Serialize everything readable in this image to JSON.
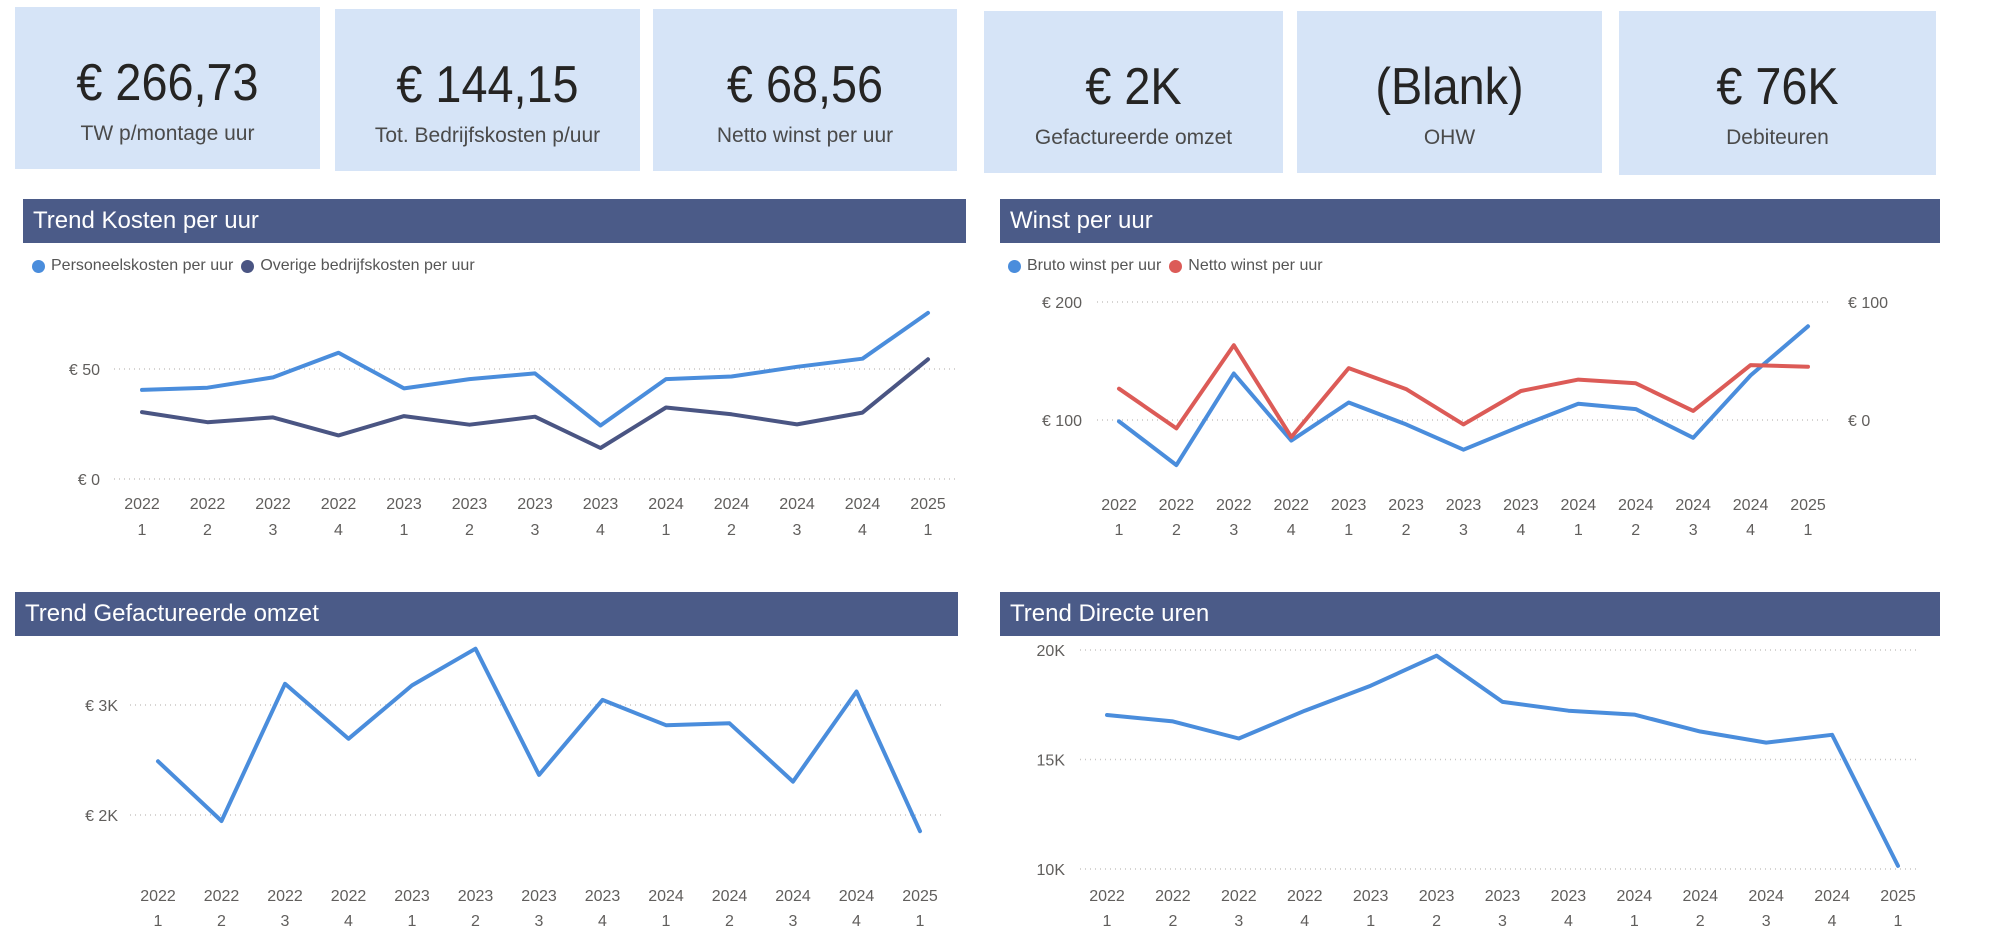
{
  "kpis": [
    {
      "value": "€ 266,73",
      "label": "TW p/montage uur"
    },
    {
      "value": "€ 144,15",
      "label": "Tot. Bedrijfskosten p/uur"
    },
    {
      "value": "€ 68,56",
      "label": "Netto winst per uur"
    },
    {
      "value": "€ 2K",
      "label": "Gefactureerde omzet"
    },
    {
      "value": "(Blank)",
      "label": "OHW"
    },
    {
      "value": "€ 76K",
      "label": "Debiteuren"
    }
  ],
  "colors": {
    "header": "#4b5b88",
    "card": "#d6e4f7",
    "blue": "#4a8ddc",
    "navy": "#4a5583",
    "red": "#dc5b57"
  },
  "chart_data": [
    {
      "id": "kosten",
      "type": "line",
      "title": "Trend Kosten per uur",
      "categories": [
        "2022 1",
        "2022 2",
        "2022 3",
        "2022 4",
        "2023 1",
        "2023 2",
        "2023 3",
        "2023 4",
        "2024 1",
        "2024 2",
        "2024 3",
        "2024 4",
        "2025 1"
      ],
      "x_years": [
        "2022",
        "2022",
        "2022",
        "2022",
        "2023",
        "2023",
        "2023",
        "2023",
        "2024",
        "2024",
        "2024",
        "2024",
        "2025"
      ],
      "x_quarters": [
        "1",
        "2",
        "3",
        "4",
        "1",
        "2",
        "3",
        "4",
        "1",
        "2",
        "3",
        "4",
        "1"
      ],
      "y_ticks": [
        {
          "value": 0,
          "label": "€ 0"
        },
        {
          "value": 50,
          "label": "€ 50"
        }
      ],
      "ylim": [
        0,
        86
      ],
      "legend_position": "top-left",
      "series": [
        {
          "name": "Personeelskosten per uur",
          "color": "#4a8ddc",
          "values": [
            40.5,
            41.5,
            46.2,
            57.4,
            41.2,
            45.4,
            48.0,
            24.3,
            45.4,
            46.6,
            51.0,
            54.7,
            75.5
          ]
        },
        {
          "name": "Overige bedrijfskosten per uur",
          "color": "#4a5583",
          "values": [
            30.4,
            25.8,
            28.0,
            19.8,
            28.6,
            24.7,
            28.3,
            14.1,
            32.5,
            29.4,
            24.8,
            30.2,
            54.4
          ]
        }
      ]
    },
    {
      "id": "winst",
      "type": "line",
      "title": "Winst per uur",
      "categories": [
        "2022 1",
        "2022 2",
        "2022 3",
        "2022 4",
        "2023 1",
        "2023 2",
        "2023 3",
        "2023 4",
        "2024 1",
        "2024 2",
        "2024 3",
        "2024 4",
        "2025 1"
      ],
      "x_years": [
        "2022",
        "2022",
        "2022",
        "2022",
        "2023",
        "2023",
        "2023",
        "2023",
        "2024",
        "2024",
        "2024",
        "2024",
        "2025"
      ],
      "x_quarters": [
        "1",
        "2",
        "3",
        "4",
        "1",
        "2",
        "3",
        "4",
        "1",
        "2",
        "3",
        "4",
        "1"
      ],
      "y_ticks": [
        {
          "value": 100,
          "label": "€ 100"
        },
        {
          "value": 200,
          "label": "€ 200"
        }
      ],
      "y2_ticks": [
        {
          "value": 0,
          "label": "€ 0"
        },
        {
          "value": 100,
          "label": "€ 100"
        }
      ],
      "legend_position": "top-left",
      "series": [
        {
          "name": "Bruto winst per uur",
          "color": "#4a8ddc",
          "axis": "left",
          "values": [
            98.8,
            61.8,
            139.4,
            82.5,
            114.8,
            96.3,
            74.8,
            94.8,
            113.8,
            109.2,
            84.9,
            137.8,
            179.4
          ]
        },
        {
          "name": "Netto winst per uur",
          "color": "#dc5b57",
          "axis": "right",
          "values": [
            26.5,
            -7.1,
            63.4,
            -14.5,
            44.0,
            26.2,
            -3.7,
            24.6,
            34.2,
            31.1,
            7.7,
            46.5,
            45.2
          ]
        }
      ]
    },
    {
      "id": "omzet",
      "type": "line",
      "title": "Trend Gefactureerde omzet",
      "categories": [
        "2022 1",
        "2022 2",
        "2022 3",
        "2022 4",
        "2023 1",
        "2023 2",
        "2023 3",
        "2023 4",
        "2024 1",
        "2024 2",
        "2024 3",
        "2024 4",
        "2025 1"
      ],
      "x_years": [
        "2022",
        "2022",
        "2022",
        "2022",
        "2023",
        "2023",
        "2023",
        "2023",
        "2024",
        "2024",
        "2024",
        "2024",
        "2025"
      ],
      "x_quarters": [
        "1",
        "2",
        "3",
        "4",
        "1",
        "2",
        "3",
        "4",
        "1",
        "2",
        "3",
        "4",
        "1"
      ],
      "y_ticks": [
        {
          "value": 2000,
          "label": "€ 2K"
        },
        {
          "value": 3000,
          "label": "€ 3K"
        }
      ],
      "series": [
        {
          "name": "Gefactureerde omzet",
          "color": "#4a8ddc",
          "values": [
            2488,
            1945,
            3193,
            2693,
            3178,
            3512,
            2365,
            3046,
            2816,
            2834,
            2304,
            3123,
            1853
          ]
        }
      ]
    },
    {
      "id": "uren",
      "type": "line",
      "title": "Trend Directe uren",
      "categories": [
        "2022 1",
        "2022 2",
        "2022 3",
        "2022 4",
        "2023 1",
        "2023 2",
        "2023 3",
        "2023 4",
        "2024 1",
        "2024 2",
        "2024 3",
        "2024 4",
        "2025 1"
      ],
      "x_years": [
        "2022",
        "2022",
        "2022",
        "2022",
        "2023",
        "2023",
        "2023",
        "2023",
        "2024",
        "2024",
        "2024",
        "2024",
        "2025"
      ],
      "x_quarters": [
        "1",
        "2",
        "3",
        "4",
        "1",
        "2",
        "3",
        "4",
        "1",
        "2",
        "3",
        "4",
        "1"
      ],
      "y_ticks": [
        {
          "value": 10000,
          "label": "10K"
        },
        {
          "value": 15000,
          "label": "15K"
        },
        {
          "value": 20000,
          "label": "20K"
        }
      ],
      "series": [
        {
          "name": "Directe uren",
          "color": "#4a8ddc",
          "values": [
            17030,
            16740,
            15960,
            17230,
            18370,
            19740,
            17630,
            17230,
            17050,
            16280,
            15770,
            16130,
            10140
          ]
        }
      ]
    }
  ]
}
